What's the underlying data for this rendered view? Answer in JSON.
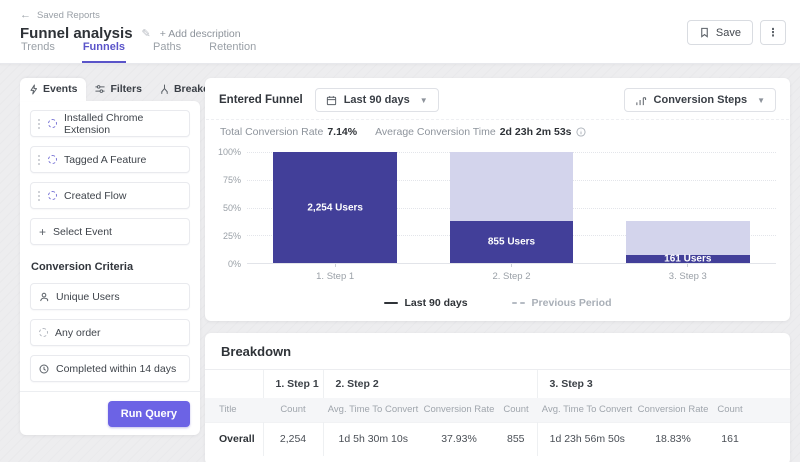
{
  "header": {
    "back_label": "Saved Reports",
    "title": "Funnel analysis",
    "add_description_label": "+ Add description",
    "tabs": [
      {
        "label": "Trends"
      },
      {
        "label": "Funnels"
      },
      {
        "label": "Paths"
      },
      {
        "label": "Retention"
      }
    ],
    "active_tab": "Funnels",
    "save_label": "Save"
  },
  "query_panel": {
    "tabs": [
      {
        "label": "Events"
      },
      {
        "label": "Filters"
      },
      {
        "label": "Breakdown"
      }
    ],
    "active_tab": "Events",
    "events": [
      "Installed Chrome Extension",
      "Tagged A Feature",
      "Created Flow"
    ],
    "select_event_label": "Select Event",
    "conversion_criteria": {
      "heading": "Conversion Criteria",
      "items": [
        {
          "label": "Unique Users",
          "icon": "user-icon"
        },
        {
          "label": "Any order",
          "icon": "loop-icon"
        },
        {
          "label": "Completed within 14 days",
          "icon": "clock-icon"
        }
      ]
    },
    "run_query_label": "Run Query"
  },
  "funnel_card": {
    "title": "Entered Funnel",
    "date_range": "Last 90 days",
    "view_mode": "Conversion Steps",
    "stats": {
      "total_rate_label": "Total Conversion Rate",
      "total_rate": "7.14%",
      "avg_time_label": "Average Conversion Time",
      "avg_time": "2d 23h 2m 53s"
    },
    "legend": [
      {
        "label": "Last 90 days",
        "style": "solid"
      },
      {
        "label": "Previous Period",
        "style": "dashed"
      }
    ]
  },
  "chart_data": {
    "type": "bar",
    "categories": [
      "1. Step 1",
      "2. Step 2",
      "3. Step 3"
    ],
    "series": [
      {
        "name": "Converted (Last 90 days)",
        "values_pct": [
          100,
          37.93,
          7.14
        ],
        "users": [
          2254,
          855,
          161
        ],
        "labels": [
          "2,254 Users",
          "855 Users",
          "161 Users"
        ],
        "color": "#423f99"
      },
      {
        "name": "Previous step level",
        "values_pct": [
          100,
          100,
          37.93
        ],
        "color": "#d3d4ec"
      }
    ],
    "y_ticks": [
      "100%",
      "75%",
      "50%",
      "25%",
      "0%"
    ],
    "ylim": [
      0,
      100
    ],
    "grid": true,
    "legend_position": "bottom"
  },
  "breakdown": {
    "title": "Breakdown",
    "step_groups": [
      "1. Step 1",
      "2. Step 2",
      "3. Step 3"
    ],
    "columns": [
      "Title",
      "Count",
      "Avg. Time To Convert",
      "Conversion Rate",
      "Count",
      "Avg. Time To Convert",
      "Conversion Rate",
      "Count"
    ],
    "rows": [
      [
        "Overall",
        "2,254",
        "1d 5h 30m 10s",
        "37.93%",
        "855",
        "1d 23h 56m 50s",
        "18.83%",
        "161"
      ]
    ]
  },
  "colors": {
    "accent_purple": "#5a54c9",
    "button_purple": "#6c63e5",
    "bar_dark": "#423f99",
    "bar_light": "#d3d4ec",
    "page_background": "#ededef"
  }
}
